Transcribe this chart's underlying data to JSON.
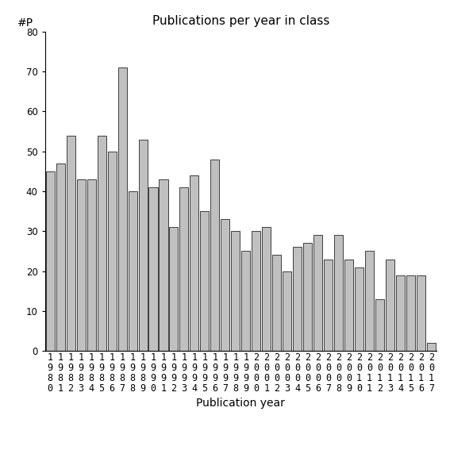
{
  "title": "Publications per year in class",
  "xlabel": "Publication year",
  "ylabel": "#P",
  "years": [
    1980,
    1981,
    1982,
    1983,
    1984,
    1985,
    1986,
    1987,
    1988,
    1989,
    1990,
    1991,
    1992,
    1993,
    1994,
    1995,
    1996,
    1997,
    1998,
    1999,
    2000,
    2001,
    2002,
    2003,
    2004,
    2005,
    2006,
    2007,
    2008,
    2009,
    2010,
    2011,
    2012,
    2013,
    2014,
    2015,
    2016,
    2017
  ],
  "values": [
    45,
    47,
    54,
    43,
    43,
    54,
    50,
    71,
    40,
    53,
    41,
    43,
    31,
    41,
    44,
    35,
    48,
    33,
    30,
    25,
    30,
    31,
    24,
    20,
    26,
    27,
    29,
    23,
    29,
    23,
    21,
    25,
    13,
    23,
    19,
    19,
    19,
    2
  ],
  "bar_color": "#c0c0c0",
  "bar_edgecolor": "#000000",
  "ylim": [
    0,
    80
  ],
  "yticks": [
    0,
    10,
    20,
    30,
    40,
    50,
    60,
    70,
    80
  ],
  "background_color": "#ffffff",
  "title_fontsize": 11,
  "axis_fontsize": 10,
  "tick_fontsize": 8.5
}
